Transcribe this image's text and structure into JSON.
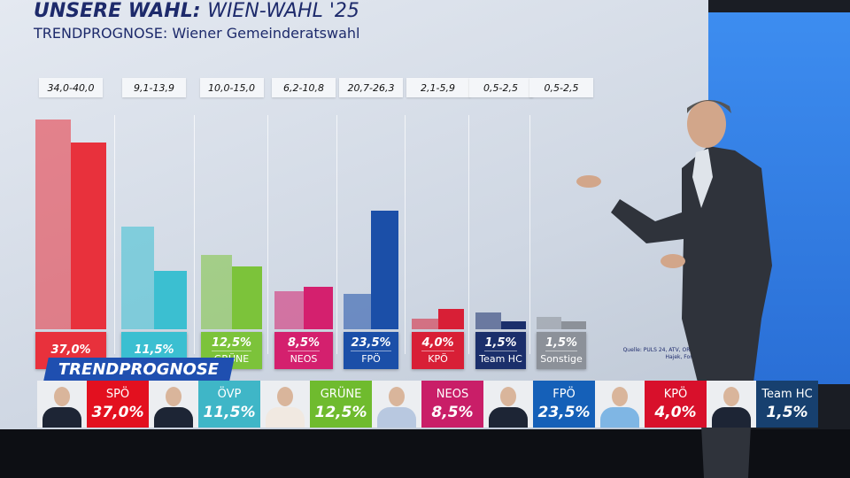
{
  "header": {
    "title_bold": "UNSERE WAHL:",
    "title_rest": "WIEN-WAHL '25",
    "subtitle": "TRENDPROGNOSE: Wiener Gemeinderatswahl"
  },
  "source": "Quelle: PULS 24, ATV, ORF, APA, Hajek, Foresight",
  "chart_data": {
    "type": "bar",
    "title": "TRENDPROGNOSE: Wiener Gemeinderatswahl",
    "categories": [
      "SPÖ",
      "ÖVP",
      "GRÜNE",
      "NEOS",
      "FPÖ",
      "KPÖ",
      "Team HC",
      "Sonstige"
    ],
    "ranges": [
      "34,0-40,0",
      "9,1-13,9",
      "10,0-15,0",
      "6,2-10,8",
      "20,7-26,3",
      "2,1-5,9",
      "0,5-2,5",
      "0,5-2,5"
    ],
    "value_labels": [
      "37,0%",
      "11,5%",
      "12,5%",
      "8,5%",
      "23,5%",
      "4,0%",
      "1,5%",
      "1,5%"
    ],
    "series": [
      {
        "values": [
          41.6,
          20.4,
          14.8,
          7.5,
          7.1,
          2.1,
          3.3,
          2.5
        ]
      },
      {
        "values": [
          37.0,
          11.5,
          12.5,
          8.5,
          23.5,
          4.0,
          1.5,
          1.5
        ]
      }
    ],
    "colors": [
      "#e8313c",
      "#3bbfd1",
      "#7cc33a",
      "#d4206e",
      "#1b4fa8",
      "#d81f36",
      "#1b2f6b",
      "#8c9199"
    ],
    "ylim": [
      0,
      45
    ],
    "grid": false,
    "legend": "none"
  },
  "ticker": {
    "tab": "TRENDPROGNOSE",
    "items": [
      {
        "party": "SPÖ",
        "value": "37,0%",
        "color": "#e3101f"
      },
      {
        "party": "ÖVP",
        "value": "11,5%",
        "color": "#3fb6c7"
      },
      {
        "party": "GRÜNE",
        "value": "12,5%",
        "color": "#6fbb2e"
      },
      {
        "party": "NEOS",
        "value": "8,5%",
        "color": "#c91e68"
      },
      {
        "party": "FPÖ",
        "value": "23,5%",
        "color": "#1560b8"
      },
      {
        "party": "KPÖ",
        "value": "4,0%",
        "color": "#d8102b"
      },
      {
        "party": "Team HC",
        "value": "1,5%",
        "color": "#17406f"
      }
    ]
  }
}
